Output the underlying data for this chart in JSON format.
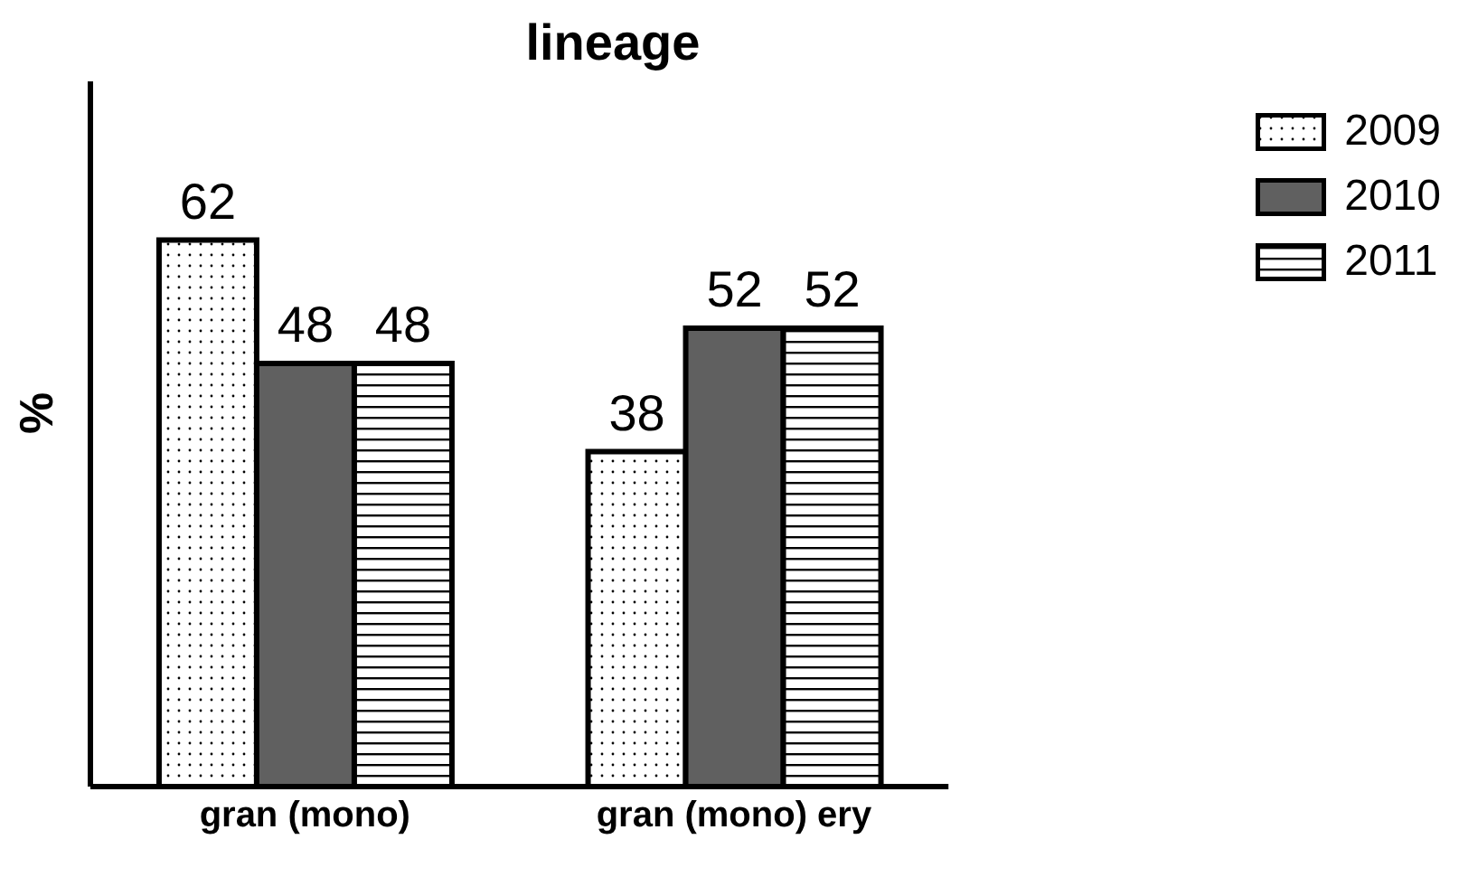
{
  "chart_data": {
    "type": "bar",
    "title": "lineage",
    "ylabel": "%",
    "categories": [
      "gran (mono)",
      "gran (mono) ery"
    ],
    "series": [
      {
        "name": "2009",
        "color": "#ffffff",
        "values": [
          62,
          38
        ]
      },
      {
        "name": "2010",
        "color": "#606060",
        "values": [
          48,
          52
        ]
      },
      {
        "name": "2011",
        "color": "#ffffff",
        "values": [
          48,
          52
        ]
      }
    ],
    "ylim": [
      0,
      80
    ],
    "tick_labels": "x",
    "data_labels": true,
    "legend": "top right",
    "grid": false
  }
}
